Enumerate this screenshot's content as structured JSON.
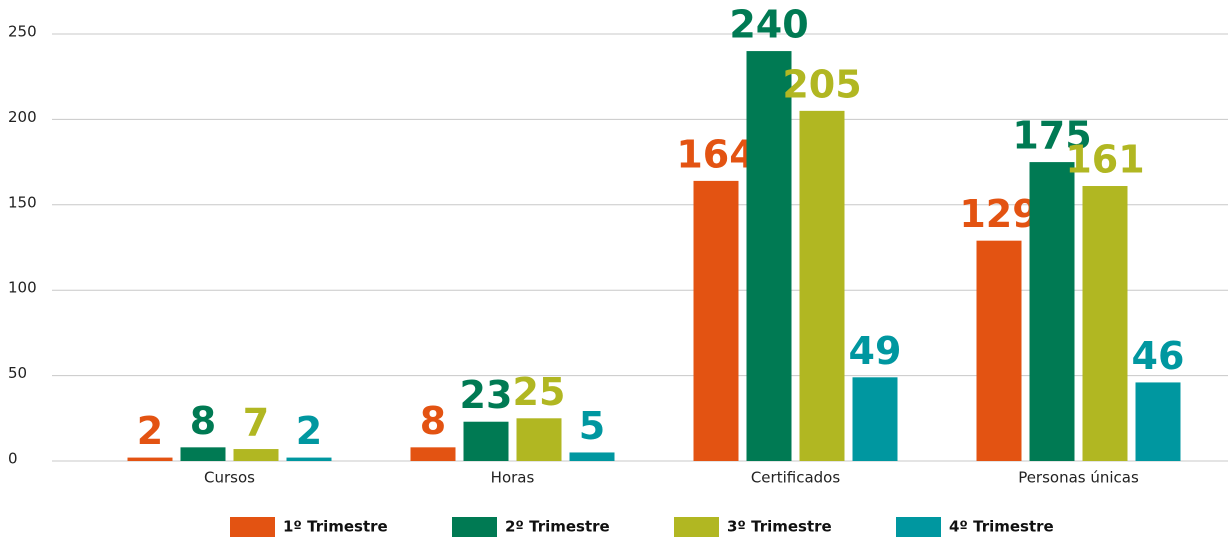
{
  "chart_data": {
    "type": "bar",
    "categories": [
      "Cursos",
      "Horas",
      "Certificados",
      "Personas únicas"
    ],
    "series": [
      {
        "name": "1º Trimestre",
        "color": "#e35312",
        "values": [
          2,
          8,
          164,
          129
        ]
      },
      {
        "name": "2º Trimestre",
        "color": "#007a53",
        "values": [
          8,
          23,
          240,
          175
        ]
      },
      {
        "name": "3º Trimestre",
        "color": "#b1b722",
        "values": [
          7,
          25,
          205,
          161
        ]
      },
      {
        "name": "4º Trimestre",
        "color": "#0097a0",
        "values": [
          2,
          5,
          49,
          46
        ]
      }
    ],
    "ylim": [
      0,
      250
    ],
    "yticks": [
      0,
      50,
      100,
      150,
      200,
      250
    ],
    "grid": true,
    "legend": "bottom"
  }
}
